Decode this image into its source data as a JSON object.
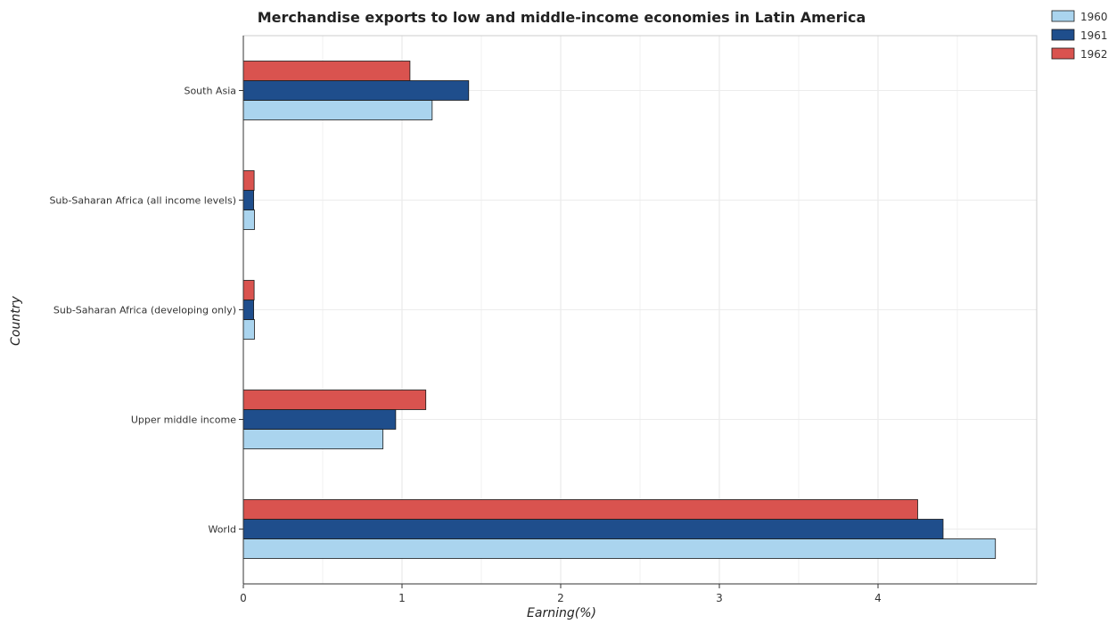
{
  "chart_data": {
    "type": "bar",
    "orientation": "horizontal",
    "title": "Merchandise exports to low and middle-income economies in Latin America",
    "xlabel": "Earning(%)",
    "ylabel": "Country",
    "xlim": [
      0,
      5.0
    ],
    "x_ticks": [
      "0",
      "1",
      "2",
      "3",
      "4"
    ],
    "x_tick_values": [
      0,
      1,
      2,
      3,
      4
    ],
    "grid": true,
    "legend_position": "top-right",
    "categories": [
      "South Asia",
      "Sub-Saharan Africa (all income levels)",
      "Sub-Saharan Africa (developing only)",
      "Upper middle income",
      "World"
    ],
    "series": [
      {
        "name": "1960",
        "color": "#aad4ee",
        "values": [
          1.19,
          0.07,
          0.07,
          0.88,
          4.74
        ]
      },
      {
        "name": "1961",
        "color": "#1f4e8c",
        "values": [
          1.42,
          0.065,
          0.065,
          0.96,
          4.41
        ]
      },
      {
        "name": "1962",
        "color": "#d9534f",
        "values": [
          1.05,
          0.068,
          0.068,
          1.15,
          4.25
        ]
      }
    ]
  }
}
